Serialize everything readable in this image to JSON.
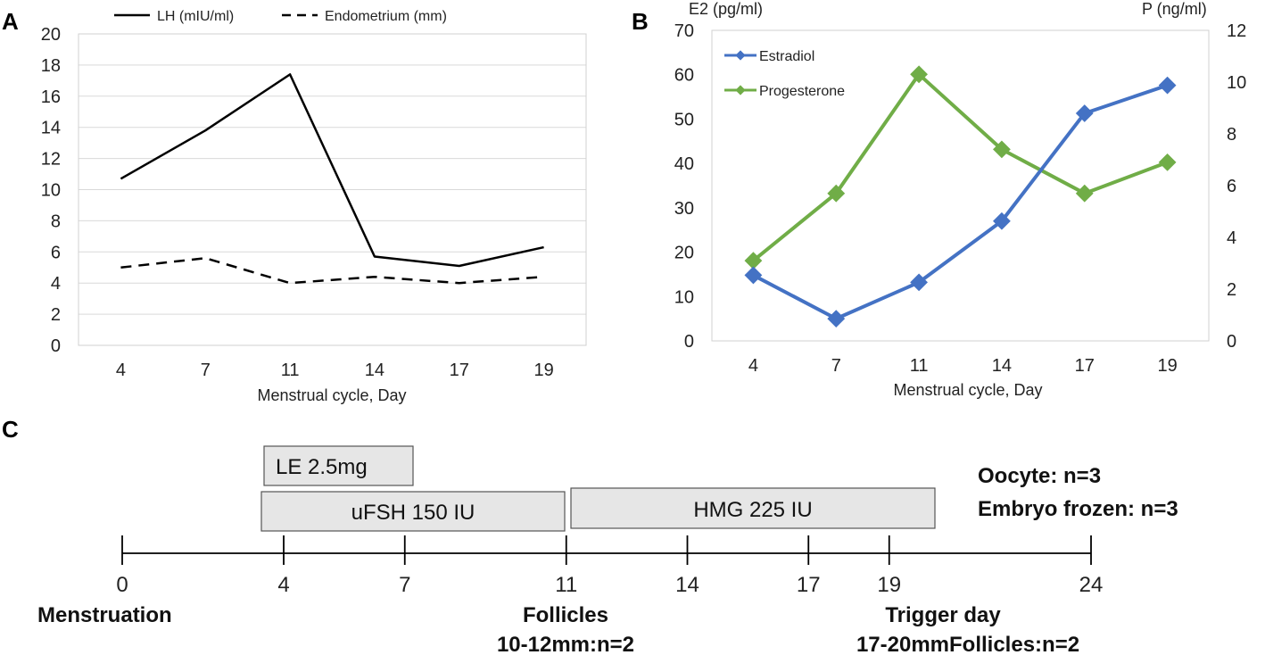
{
  "panels": {
    "a": "A",
    "b": "B",
    "c": "C"
  },
  "chart_data": [
    {
      "id": "A",
      "type": "line",
      "title": "",
      "xlabel": "Menstrual cycle, Day",
      "ylabel": "",
      "categories": [
        "4",
        "7",
        "11",
        "14",
        "17",
        "19"
      ],
      "ylim": [
        0,
        20
      ],
      "yticks": [
        "0",
        "2",
        "4",
        "6",
        "8",
        "10",
        "12",
        "14",
        "16",
        "18",
        "20"
      ],
      "grid": true,
      "legend": "top",
      "series": [
        {
          "name": "LH (mIU/ml)",
          "style": "solid",
          "color": "#000000",
          "values": [
            10.7,
            13.8,
            17.4,
            5.7,
            5.1,
            6.3
          ]
        },
        {
          "name": "Endometrium (mm)",
          "style": "dashed",
          "color": "#000000",
          "values": [
            5.0,
            5.6,
            4.0,
            4.4,
            4.0,
            4.4
          ]
        }
      ]
    },
    {
      "id": "B",
      "type": "line",
      "title": "",
      "xlabel": "Menstrual cycle, Day",
      "ylabel_left": "E2 (pg/ml)",
      "ylabel_right": "P (ng/ml)",
      "categories": [
        "4",
        "7",
        "11",
        "14",
        "17",
        "19"
      ],
      "ylim_left": [
        0,
        70
      ],
      "ylim_right": [
        0,
        12
      ],
      "yticks_left": [
        "0",
        "10",
        "20",
        "30",
        "40",
        "50",
        "60",
        "70"
      ],
      "yticks_right": [
        "0",
        "2",
        "4",
        "6",
        "8",
        "10",
        "12"
      ],
      "grid": false,
      "legend": "top-left",
      "series": [
        {
          "name": "Estradiol",
          "axis": "left",
          "color": "#4472c4",
          "values": [
            14.8,
            5.0,
            13.2,
            27.0,
            51.3,
            57.6
          ]
        },
        {
          "name": "Progesterone",
          "axis": "right",
          "color": "#70ad47",
          "values": [
            3.1,
            5.7,
            10.3,
            7.4,
            5.7,
            6.9
          ]
        }
      ]
    }
  ],
  "timeline": {
    "ticks": [
      "0",
      "4",
      "7",
      "11",
      "14",
      "17",
      "19",
      "24"
    ],
    "boxes": {
      "le": "LE 2.5mg",
      "ufsh": "uFSH 150 IU",
      "hmg": "HMG 225 IU"
    },
    "result_oocyte": "Oocyte: n=3",
    "result_embryo": "Embryo frozen: n=3",
    "menstruation": "Menstruation",
    "follicles_title": "Follicles",
    "follicles_detail": "10-12mm:n=2",
    "trigger_title": "Trigger day",
    "trigger_detail": "17-20mmFollicles:n=2"
  }
}
